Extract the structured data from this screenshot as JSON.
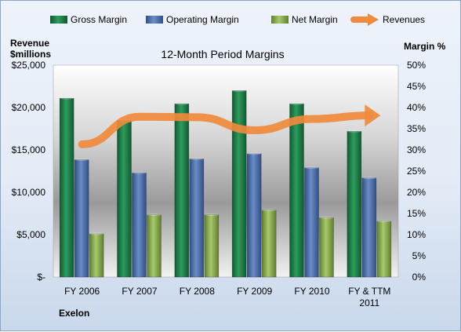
{
  "chart_data": {
    "type": "bar",
    "title": "12-Month Period Margins",
    "company": "Exelon",
    "left_axis": {
      "title_line1": "Revenue",
      "title_line2": "$millions",
      "ticks": [
        "$-",
        "$5,000",
        "$10,000",
        "$15,000",
        "$20,000",
        "$25,000"
      ],
      "ylim": [
        0,
        25000
      ]
    },
    "right_axis": {
      "title": "Margin %",
      "ticks": [
        "0%",
        "5%",
        "10%",
        "15%",
        "20%",
        "25%",
        "30%",
        "35%",
        "40%",
        "45%",
        "50%"
      ],
      "ylim": [
        0,
        50
      ]
    },
    "categories": [
      {
        "line1": "FY 2006",
        "line2": ""
      },
      {
        "line1": "FY 2007",
        "line2": ""
      },
      {
        "line1": "FY 2008",
        "line2": ""
      },
      {
        "line1": "FY 2009",
        "line2": ""
      },
      {
        "line1": "FY 2010",
        "line2": ""
      },
      {
        "line1": "FY & TTM",
        "line2": "2011"
      }
    ],
    "series": [
      {
        "name": "Gross Margin",
        "axis": "right",
        "color": "#1e7a46",
        "values": [
          42.2,
          37.0,
          40.9,
          44.0,
          40.9,
          34.4
        ]
      },
      {
        "name": "Operating Margin",
        "axis": "right",
        "color": "#4f73b0",
        "values": [
          27.7,
          24.6,
          27.9,
          29.1,
          25.8,
          23.4
        ]
      },
      {
        "name": "Net Margin",
        "axis": "right",
        "color": "#8db052",
        "values": [
          10.2,
          14.7,
          14.7,
          15.8,
          14.0,
          13.2
        ]
      },
      {
        "name": "Revenues",
        "axis": "left",
        "color": "#f08a3c",
        "values": [
          15655,
          18916,
          18859,
          17318,
          18644,
          19064
        ]
      }
    ],
    "legend_position": "top",
    "grid": false
  }
}
